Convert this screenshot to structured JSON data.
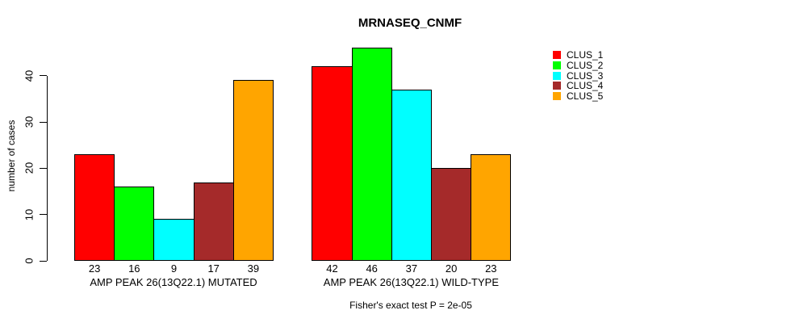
{
  "chart_data": {
    "type": "bar",
    "title": "MRNASEQ_CNMF",
    "ylabel": "number of cases",
    "caption": "Fisher's exact test P = 2e-05",
    "yticks": [
      0,
      10,
      20,
      30,
      40
    ],
    "ylim": [
      0,
      46
    ],
    "grid": false,
    "legend_position": "right",
    "series": [
      {
        "name": "CLUS_1",
        "color": "#FF0000"
      },
      {
        "name": "CLUS_2",
        "color": "#00FF00"
      },
      {
        "name": "CLUS_3",
        "color": "#00FFFF"
      },
      {
        "name": "CLUS_4",
        "color": "#A52A2A"
      },
      {
        "name": "CLUS_5",
        "color": "#FFA500"
      }
    ],
    "groups": [
      {
        "label": "AMP PEAK 26(13Q22.1) MUTATED",
        "values": [
          23,
          16,
          9,
          17,
          39
        ]
      },
      {
        "label": "AMP PEAK 26(13Q22.1) WILD-TYPE",
        "values": [
          42,
          46,
          37,
          20,
          23
        ]
      }
    ]
  }
}
